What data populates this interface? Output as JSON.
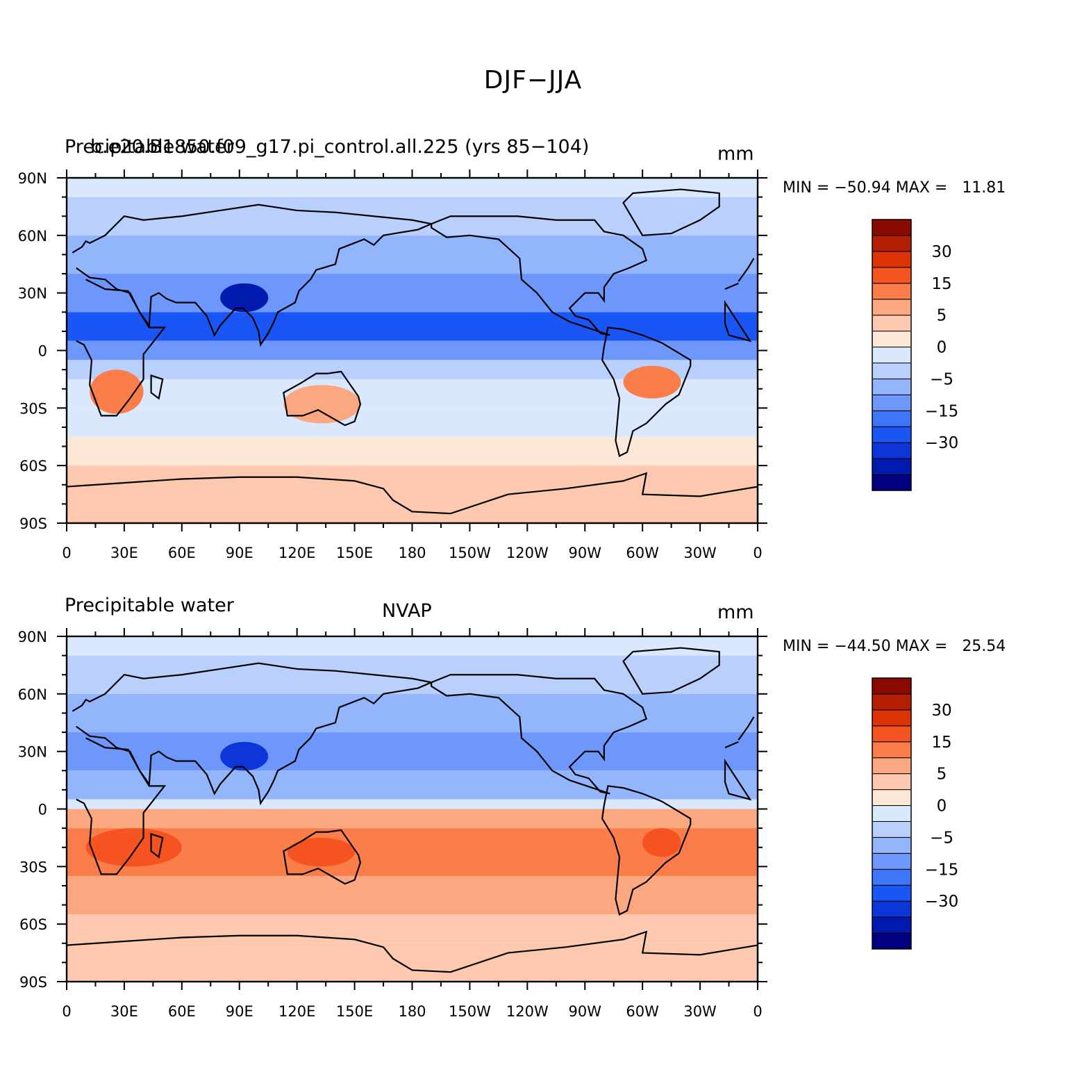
{
  "title": "DJF−JJA",
  "colors": [
    "#000080",
    "#001ab0",
    "#0d36d8",
    "#1a56f5",
    "#3f75f8",
    "#6d97fa",
    "#93b5fb",
    "#b9d0fc",
    "#d9e8fd",
    "#fde8d8",
    "#fcc9b0",
    "#fba77f",
    "#fa7d4a",
    "#f5531f",
    "#dc3407",
    "#b41e02",
    "#8a0a00"
  ],
  "colorbar_labels": [
    "30",
    "15",
    "5",
    "0",
    "−5",
    "−15",
    "−30"
  ],
  "x_ticks": [
    "0",
    "30E",
    "60E",
    "90E",
    "120E",
    "150E",
    "180",
    "150W",
    "120W",
    "90W",
    "60W",
    "30W",
    "0"
  ],
  "y_ticks": [
    "90N",
    "60N",
    "30N",
    "0",
    "30S",
    "60S",
    "90S"
  ],
  "panels": [
    {
      "left_label": "Precipitable water",
      "center_label": "b.e20.B1850.f09_g17.pi_control.all.225 (yrs 85−104)",
      "units": "mm",
      "min_label": "MIN = ",
      "min_value": "−50.94",
      "max_label": "MAX = ",
      "max_value": "11.81"
    },
    {
      "left_label": "Precipitable water",
      "center_label": "NVAP",
      "units": "mm",
      "min_label": "MIN = ",
      "min_value": "−44.50",
      "max_label": "MAX = ",
      "max_value": "25.54"
    }
  ],
  "chart_data": [
    {
      "type": "heatmap",
      "title": "Precipitable water",
      "subtitle": "b.e20.B1850.f09_g17.pi_control.all.225 (yrs 85−104)",
      "units": "mm",
      "min": -50.94,
      "max": 11.81,
      "xlim": [
        0,
        360
      ],
      "ylim": [
        -90,
        90
      ],
      "zonal_bands": [
        {
          "lat": [
            80,
            90
          ],
          "value": -5
        },
        {
          "lat": [
            60,
            80
          ],
          "value": -10
        },
        {
          "lat": [
            40,
            60
          ],
          "value": -15
        },
        {
          "lat": [
            20,
            40
          ],
          "value": -20
        },
        {
          "lat": [
            5,
            20
          ],
          "value": -30
        },
        {
          "lat": [
            -5,
            5
          ],
          "value": -20
        },
        {
          "lat": [
            -15,
            -5
          ],
          "value": -10
        },
        {
          "lat": [
            -30,
            -15
          ],
          "value": -5
        },
        {
          "lat": [
            -45,
            -30
          ],
          "value": -3
        },
        {
          "lat": [
            -60,
            -45
          ],
          "value": -1
        },
        {
          "lat": [
            -90,
            -60
          ],
          "value": 1
        }
      ],
      "regions": [
        {
          "name": "southern Africa",
          "lon": [
            12,
            40
          ],
          "lat": [
            -33,
            -10
          ],
          "value": 10
        },
        {
          "name": "Australia",
          "lon": [
            113,
            153
          ],
          "lat": [
            -38,
            -18
          ],
          "value": 8
        },
        {
          "name": "South America",
          "lon": [
            290,
            320
          ],
          "lat": [
            -25,
            -8
          ],
          "value": 10
        },
        {
          "name": "Tibet",
          "lon": [
            80,
            105
          ],
          "lat": [
            20,
            35
          ],
          "value": -40
        }
      ]
    },
    {
      "type": "heatmap",
      "title": "Precipitable water",
      "subtitle": "NVAP",
      "units": "mm",
      "min": -44.5,
      "max": 25.54,
      "xlim": [
        0,
        360
      ],
      "ylim": [
        -90,
        90
      ],
      "zonal_bands": [
        {
          "lat": [
            80,
            90
          ],
          "value": -5
        },
        {
          "lat": [
            60,
            80
          ],
          "value": -8
        },
        {
          "lat": [
            40,
            60
          ],
          "value": -15
        },
        {
          "lat": [
            20,
            40
          ],
          "value": -20
        },
        {
          "lat": [
            5,
            20
          ],
          "value": -15
        },
        {
          "lat": [
            0,
            5
          ],
          "value": -3
        },
        {
          "lat": [
            -10,
            0
          ],
          "value": 5
        },
        {
          "lat": [
            -35,
            -10
          ],
          "value": 12
        },
        {
          "lat": [
            -55,
            -35
          ],
          "value": 6
        },
        {
          "lat": [
            -70,
            -55
          ],
          "value": 3
        },
        {
          "lat": [
            -90,
            -70
          ],
          "value": 1
        }
      ],
      "regions": [
        {
          "name": "southern Africa",
          "lon": [
            10,
            60
          ],
          "lat": [
            -30,
            -10
          ],
          "value": 18
        },
        {
          "name": "Australia",
          "lon": [
            115,
            150
          ],
          "lat": [
            -30,
            -15
          ],
          "value": 18
        },
        {
          "name": "South America",
          "lon": [
            300,
            320
          ],
          "lat": [
            -25,
            -10
          ],
          "value": 18
        },
        {
          "name": "Tibet",
          "lon": [
            80,
            105
          ],
          "lat": [
            20,
            35
          ],
          "value": -35
        }
      ]
    }
  ]
}
